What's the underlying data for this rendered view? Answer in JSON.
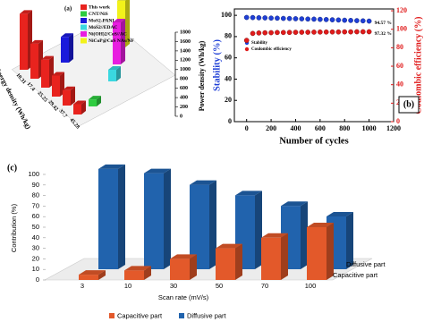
{
  "chart_data": [
    {
      "type": "bar3d",
      "label": "(a)",
      "x_label": "Energy density (Wh/kg)",
      "y_label": "Power density (Wh/kg)",
      "categories": [
        "10.31",
        "17.4",
        "25.25",
        "29.42",
        "37.7",
        "45.28"
      ],
      "series": [
        {
          "name": "This work",
          "color": "#e8231e",
          "values": [
            1200,
            750,
            600,
            450,
            330,
            220
          ]
        },
        {
          "name": "CNT/NiS",
          "color": "#2ecc40",
          "values": [
            null,
            null,
            null,
            null,
            null,
            150
          ]
        },
        {
          "name": "MoS2-PANI",
          "color": "#1a1adb",
          "values": [
            null,
            550,
            null,
            null,
            null,
            null
          ]
        },
        {
          "name": "MoS2//EDAC",
          "color": "#3ad8e0",
          "values": [
            null,
            null,
            null,
            null,
            250,
            null
          ]
        },
        {
          "name": "Ni(OH)2/CoS//AC",
          "color": "#e81ee0",
          "values": [
            null,
            null,
            null,
            900,
            null,
            null
          ]
        },
        {
          "name": "NiCoP@CoS NAs/NF",
          "color": "#f2f21a",
          "values": [
            null,
            null,
            1000,
            null,
            null,
            null
          ]
        }
      ],
      "ylim": [
        0,
        1800
      ],
      "yticks": [
        0,
        200,
        400,
        600,
        800,
        1000,
        1200,
        1400,
        1600,
        1800
      ]
    },
    {
      "type": "scatter",
      "label": "(b)",
      "x_label": "Number of cycles",
      "y_label": "Stability (%)",
      "y2_label": "Coulombic efficiency (%)",
      "x": [
        0,
        50,
        100,
        150,
        200,
        250,
        300,
        350,
        400,
        450,
        500,
        550,
        600,
        650,
        700,
        750,
        800,
        850,
        900,
        950,
        1000
      ],
      "series": [
        {
          "name": "Stability",
          "color": "#1f3fd6",
          "values": [
            98.0,
            97.9,
            97.7,
            97.6,
            97.4,
            97.3,
            97.1,
            97.0,
            96.8,
            96.7,
            96.5,
            96.4,
            96.2,
            96.0,
            95.8,
            95.6,
            95.4,
            95.2,
            95.0,
            94.8,
            94.57
          ]
        },
        {
          "name": "Coulombic efficiency",
          "color": "#e01b1b",
          "axis": "y2",
          "values": [
            88.0,
            95.5,
            96.0,
            96.2,
            96.3,
            96.5,
            96.5,
            96.6,
            96.7,
            96.8,
            96.8,
            96.9,
            97.0,
            97.0,
            97.1,
            97.1,
            97.2,
            97.2,
            97.3,
            97.3,
            97.32
          ]
        }
      ],
      "annotations": [
        "94.57 %",
        "97.32 %"
      ],
      "xlim": [
        -100,
        1200
      ],
      "xticks": [
        0,
        200,
        400,
        600,
        800,
        1000,
        1200
      ],
      "ylim": [
        0,
        106
      ],
      "yticks": [
        0,
        20,
        40,
        60,
        80,
        100
      ],
      "y2lim": [
        0,
        122
      ],
      "y2ticks": [
        0,
        20,
        40,
        60,
        80,
        100,
        120
      ]
    },
    {
      "type": "bar",
      "label": "(c)",
      "x_label": "Scan rate (mV/s)",
      "y_label": "Contribution (%)",
      "categories": [
        "3",
        "10",
        "30",
        "50",
        "70",
        "100"
      ],
      "series": [
        {
          "name": "Capacitive part",
          "color": "#e3592a",
          "values": [
            5,
            9,
            20,
            30,
            40,
            50
          ]
        },
        {
          "name": "Diffusive part",
          "color": "#2163ad",
          "values": [
            95,
            91,
            80,
            70,
            60,
            50
          ]
        }
      ],
      "ylim": [
        0,
        100
      ],
      "yticks": [
        0,
        10,
        20,
        30,
        40,
        50,
        60,
        70,
        80,
        90,
        100
      ]
    }
  ]
}
